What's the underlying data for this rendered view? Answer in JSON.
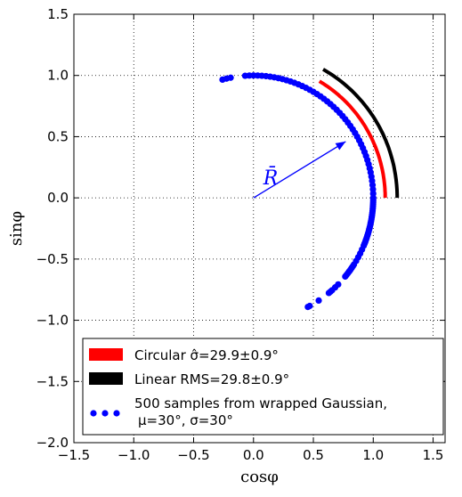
{
  "chart_data": {
    "type": "scatter",
    "xlabel": "cosφ",
    "ylabel": "sinφ",
    "xlim": [
      -1.5,
      1.6
    ],
    "ylim": [
      -2.0,
      1.5
    ],
    "xticks": [
      -1.5,
      -1.0,
      -0.5,
      0.0,
      0.5,
      1.0,
      1.5
    ],
    "yticks": [
      -2.0,
      -1.5,
      -1.0,
      -0.5,
      0.0,
      0.5,
      1.0,
      1.5
    ],
    "xtick_labels": [
      "−1.5",
      "−1.0",
      "−0.5",
      "0.0",
      "0.5",
      "1.0",
      "1.5"
    ],
    "ytick_labels": [
      "−2.0",
      "−1.5",
      "−1.0",
      "−0.5",
      "0.0",
      "0.5",
      "1.0",
      "1.5"
    ],
    "grid": true,
    "legend_position": "bottom",
    "series": [
      {
        "name": "Circular σ̂=29.9±0.9°",
        "kind": "arc",
        "color": "#ff0000",
        "radius": 1.1,
        "theta_deg": [
          0,
          60
        ]
      },
      {
        "name": "Linear RMS=29.8±0.9°",
        "kind": "arc",
        "color": "#000000",
        "radius": 1.2,
        "theta_deg": [
          0,
          61
        ]
      },
      {
        "name": "500 samples from wrapped Gaussian, μ=30°, σ=30°",
        "kind": "points",
        "color": "#0000ff",
        "radius": 1.0,
        "theta_deg": [
          -63,
          -62,
          -57,
          -51,
          -50,
          -49,
          -47,
          -45,
          -40,
          -39,
          -38,
          -37,
          -36,
          -35,
          -34,
          -33,
          -31,
          -29,
          -27,
          -25,
          -23,
          -22,
          -21,
          -20,
          -19,
          -18,
          -17,
          -16,
          -15,
          -14,
          -13,
          -12,
          -11,
          -10,
          -9,
          -8,
          -7,
          -6,
          -5,
          -4,
          -3,
          -2,
          -1,
          0,
          2,
          4,
          6,
          8,
          10,
          12,
          14,
          16,
          18,
          20,
          22,
          24,
          26,
          28,
          30,
          32,
          34,
          36,
          38,
          40,
          42,
          44,
          46,
          48,
          50,
          52,
          54,
          56,
          58,
          60,
          62,
          64,
          66,
          68,
          70,
          72,
          74,
          76,
          78,
          80,
          82,
          84,
          86,
          88,
          90,
          92,
          94,
          101,
          103,
          105
        ]
      }
    ],
    "annotation": {
      "label": "R̄",
      "color": "#0000ff",
      "arrow_from": [
        0.0,
        0.0
      ],
      "arrow_to": [
        0.77,
        0.46
      ]
    }
  }
}
